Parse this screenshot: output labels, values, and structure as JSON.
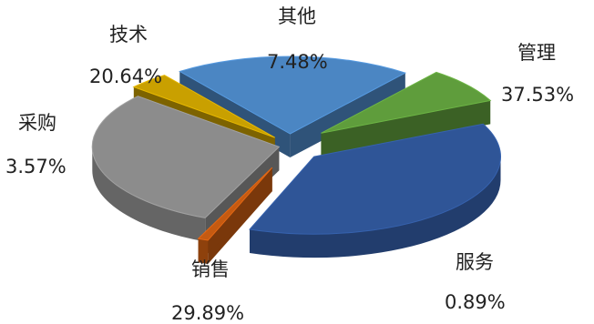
{
  "chart_data": {
    "type": "pie",
    "style": "3d-exploded",
    "slices": [
      {
        "label": "管理",
        "value": 37.53,
        "display": "37.53%",
        "color": "#2f5597"
      },
      {
        "label": "服务",
        "value": 0.89,
        "display": "0.89%",
        "color": "#c55a11"
      },
      {
        "label": "销售",
        "value": 29.89,
        "display": "29.89%",
        "color": "#8c8c8c"
      },
      {
        "label": "采购",
        "value": 3.57,
        "display": "3.57%",
        "color": "#c9a000"
      },
      {
        "label": "技术",
        "value": 20.64,
        "display": "20.64%",
        "color": "#4b86c3"
      },
      {
        "label": "其他",
        "value": 7.48,
        "display": "7.48%",
        "color": "#5f9d3c"
      }
    ],
    "legend": "none"
  }
}
